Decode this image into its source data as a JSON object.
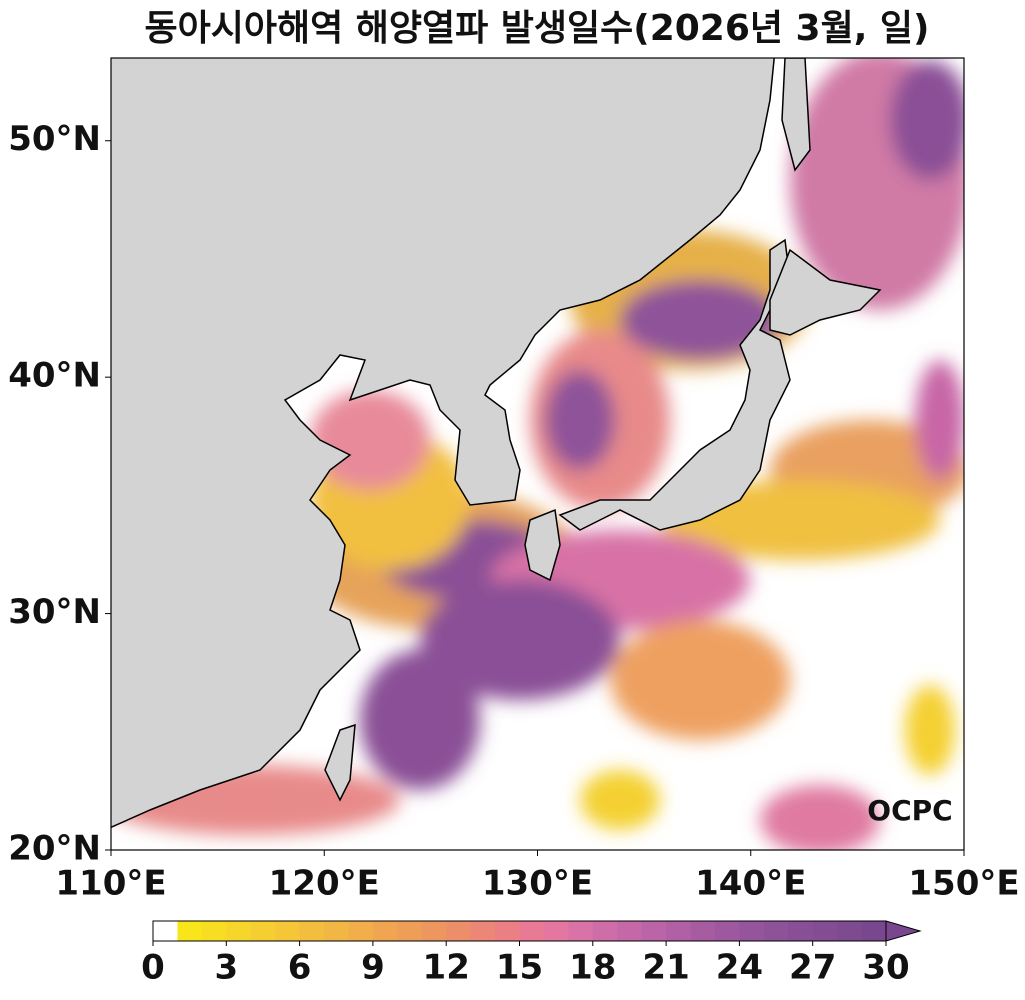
{
  "title": "동아시아해역 해양열파 발생일수(2026년 3월, 일)",
  "map": {
    "xlim": [
      110,
      150
    ],
    "ylim": [
      20,
      53.5
    ],
    "xticks": [
      {
        "value": 110,
        "label": "110°E"
      },
      {
        "value": 120,
        "label": "120°E"
      },
      {
        "value": 130,
        "label": "130°E"
      },
      {
        "value": 140,
        "label": "140°E"
      },
      {
        "value": 150,
        "label": "150°E"
      }
    ],
    "yticks": [
      {
        "value": 20,
        "label": "20°N"
      },
      {
        "value": 30,
        "label": "30°N"
      },
      {
        "value": 40,
        "label": "40°N"
      },
      {
        "value": 50,
        "label": "50°N"
      }
    ]
  },
  "colorbar": {
    "lim": [
      0,
      30
    ],
    "ticks": [
      0,
      3,
      6,
      9,
      12,
      15,
      18,
      21,
      24,
      27,
      30
    ],
    "extend": "max",
    "colors": [
      "#ffffff",
      "#f8e61a",
      "#f7de22",
      "#f6d62a",
      "#f5ce31",
      "#f4c638",
      "#f3be3e",
      "#f2b644",
      "#f1ae4a",
      "#f0a651",
      "#ef9e58",
      "#ee9660",
      "#ed8e6a",
      "#ec8676",
      "#eb7f84",
      "#e97a95",
      "#e377a0",
      "#d972a6",
      "#cf6da8",
      "#c568a8",
      "#bb64a7",
      "#b160a5",
      "#a75ca2",
      "#9e589f",
      "#95559c",
      "#8e5299",
      "#884f96",
      "#834c93",
      "#7e4a90",
      "#79478d"
    ]
  },
  "logo": "OCPC"
}
